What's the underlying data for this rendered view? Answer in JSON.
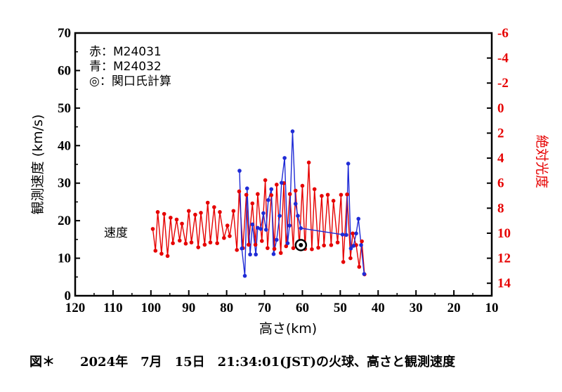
{
  "chart_data": {
    "type": "line",
    "x_axis": {
      "label": "高さ(km)",
      "range": [
        120,
        10
      ],
      "ticks": [
        "120",
        "110",
        "100",
        "90",
        "80",
        "70",
        "60",
        "50",
        "40",
        "30",
        "20",
        "10"
      ]
    },
    "y_axis_left": {
      "label": "観測速度 (km/s)",
      "range": [
        0,
        70
      ],
      "ticks": [
        "0",
        "10",
        "20",
        "30",
        "40",
        "50",
        "60",
        "70"
      ]
    },
    "y_axis_right": {
      "label": "絶対光度",
      "range": [
        15,
        -6
      ],
      "ticks": [
        "14",
        "12",
        "10",
        "8",
        "6",
        "4",
        "2",
        "0",
        "-2",
        "-4",
        "-6"
      ],
      "color": "#e60000"
    },
    "legend": {
      "red": "赤：M24031",
      "blue": "青：M24032",
      "seki": "◎：関口氏計算"
    },
    "annotation": "速度",
    "caption": "図＊　　2024年　7月　15日　21:34:01(JST)の火球、高さと観測速度",
    "series": [
      {
        "name": "M24031",
        "color": "#e60000",
        "x": [
          99.5,
          98.8,
          98.2,
          97.2,
          96.5,
          95.6,
          94.8,
          94.2,
          93.2,
          92.4,
          91.8,
          90.8,
          90.0,
          89.3,
          88.3,
          87.5,
          86.8,
          85.8,
          85.0,
          84.3,
          83.3,
          82.5,
          81.8,
          80.7,
          79.8,
          79.2,
          78.2,
          77.3,
          76.7,
          75.7,
          74.8,
          74.2,
          73.2,
          72.4,
          71.8,
          70.7,
          69.8,
          69.2,
          68.2,
          67.4,
          66.8,
          65.7,
          64.9,
          64.3,
          63.3,
          62.4,
          61.8,
          60.8,
          60.0,
          59.3,
          58.3,
          57.5,
          56.8,
          55.8,
          54.9,
          54.3,
          53.3,
          52.4,
          51.8,
          50.7,
          49.8,
          49.2,
          48.2,
          47.3,
          46.7,
          45.8,
          45.0,
          44.3,
          43.6
        ],
        "y": [
          17.8,
          12.0,
          22.3,
          11.2,
          21.8,
          10.6,
          20.8,
          14.0,
          20.3,
          14.7,
          19.2,
          13.9,
          22.6,
          14.2,
          21.6,
          12.9,
          22.1,
          13.6,
          24.8,
          14.2,
          23.6,
          14.0,
          22.3,
          15.4,
          18.7,
          15.9,
          22.6,
          12.2,
          27.8,
          12.7,
          26.9,
          13.6,
          24.6,
          13.6,
          27.1,
          14.6,
          30.8,
          12.7,
          26.8,
          12.5,
          29.6,
          11.4,
          30.0,
          13.2,
          27.1,
          12.7,
          28.0,
          13.6,
          29.3,
          12.5,
          35.5,
          12.4,
          28.4,
          12.8,
          26.6,
          13.4,
          26.9,
          13.5,
          25.3,
          14.2,
          26.9,
          9.0,
          27.0,
          10.0,
          16.6,
          13.5,
          7.7,
          14.5,
          5.7
        ]
      },
      {
        "name": "M24032",
        "color": "#1f2bd6",
        "x": [
          76.6,
          76.0,
          75.2,
          74.6,
          73.8,
          73.2,
          72.3,
          71.8,
          71.0,
          70.3,
          69.6,
          69.0,
          68.2,
          67.6,
          66.8,
          66.0,
          65.5,
          64.7,
          63.9,
          63.4,
          62.6,
          61.8,
          61.2,
          60.4,
          49.4,
          48.4,
          47.9,
          47.2,
          46.5,
          45.8,
          45.2,
          44.5,
          43.7
        ],
        "y": [
          33.3,
          12.6,
          5.3,
          28.6,
          11.0,
          19.0,
          11.0,
          18.1,
          17.8,
          22.0,
          17.6,
          25.5,
          28.4,
          11.1,
          14.9,
          21.3,
          30.1,
          36.7,
          14.0,
          18.7,
          43.8,
          24.5,
          21.3,
          18.0,
          16.3,
          16.2,
          35.2,
          12.6,
          13.3,
          16.6,
          20.5,
          13.5,
          5.8
        ]
      },
      {
        "name": "関口氏計算",
        "color": "#000000",
        "x": [
          60.4
        ],
        "y": [
          13.5
        ]
      }
    ]
  }
}
